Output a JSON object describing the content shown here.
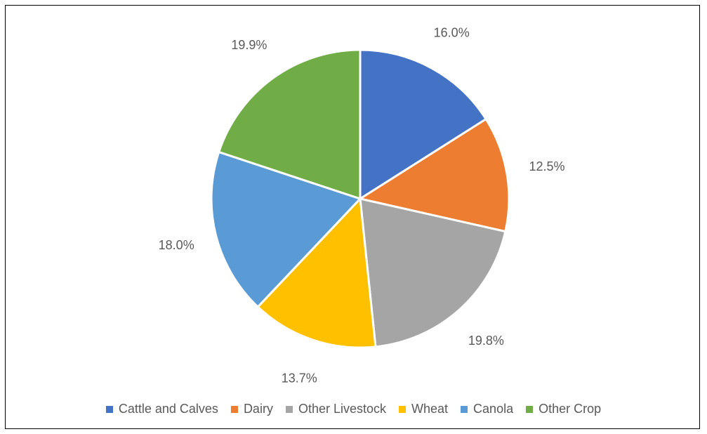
{
  "chart_data": {
    "type": "pie",
    "title": "",
    "legend_position": "bottom",
    "slices": [
      {
        "label": "Cattle and Calves",
        "value": 16.0,
        "display": "16.0%",
        "color": "#4472C4"
      },
      {
        "label": "Dairy",
        "value": 12.5,
        "display": "12.5%",
        "color": "#ED7D31"
      },
      {
        "label": "Other Livestock",
        "value": 19.8,
        "display": "19.8%",
        "color": "#A5A5A5"
      },
      {
        "label": "Wheat",
        "value": 13.7,
        "display": "13.7%",
        "color": "#FFC000"
      },
      {
        "label": "Canola",
        "value": 18.0,
        "display": "18.0%",
        "color": "#5B9BD5"
      },
      {
        "label": "Other Crop",
        "value": 19.9,
        "display": "19.9%",
        "color": "#70AD47"
      }
    ]
  }
}
